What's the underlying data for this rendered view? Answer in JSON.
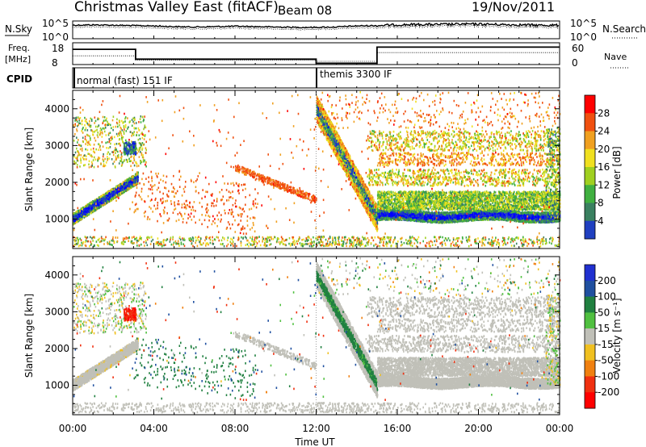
{
  "header": {
    "station": "Christmas Valley East (fitACF)",
    "beam": "Beam 08",
    "date": "19/Nov/2011"
  },
  "colors": {
    "power": [
      "#0000ff",
      "#2040c0",
      "#3a8060",
      "#40b040",
      "#a0d020",
      "#f0e020",
      "#f0a020",
      "#f05010",
      "#ff0000"
    ],
    "velocity": [
      "#2030d0",
      "#2050a0",
      "#208040",
      "#50c040",
      "#c0c0b8",
      "#f0c020",
      "#f08010",
      "#f03010",
      "#ff0000"
    ],
    "ground": "#c0c0b8"
  },
  "panels": {
    "nsky": {
      "label": "N.Sky",
      "tick_top": "10^5",
      "tick_bottom": "10^0",
      "right_label": "N.Search",
      "right_tick_top": "10^5",
      "right_tick_bottom": "10^0"
    },
    "freq": {
      "label_line1": "Freq.",
      "label_line2": "[MHz]",
      "tick_top": "18",
      "tick_bottom": "8",
      "right_label": "Nave",
      "right_tick_top": "60",
      "right_tick_bottom": "0"
    },
    "cpid": {
      "label": "CPID",
      "mode1": "normal (fast) 151 IF",
      "mode2": "themis 3300 IF"
    },
    "power": {
      "ylabel": "Slant Range [km]",
      "cbar_label": "Power [dB]",
      "cbar_ticks": [
        "28",
        "24",
        "20",
        "16",
        "12",
        "8",
        "4"
      ]
    },
    "velocity": {
      "ylabel": "Slant Range [km]",
      "cbar_label": "Velocity [m s⁻¹]",
      "cbar_ticks": [
        "200",
        "100",
        "50",
        "15",
        "-15",
        "-50",
        "-100",
        "-200"
      ]
    }
  },
  "chart_data": [
    {
      "type": "line",
      "name": "nsky-nsearch",
      "xlim": [
        0,
        24
      ],
      "series": [
        {
          "x": [
            0,
            1,
            2,
            3,
            4,
            5,
            6,
            7,
            8,
            9,
            10,
            11,
            12,
            13,
            14,
            15,
            16,
            17,
            18,
            19,
            20,
            21,
            22,
            23,
            24
          ],
          "values": [
            3.8,
            3.9,
            3.8,
            3.7,
            3.6,
            3.4,
            3.3,
            3.4,
            3.5,
            3.4,
            3.3,
            3.2,
            3.2,
            3.3,
            3.6,
            3.7,
            3.9,
            4.0,
            4.0,
            4.1,
            4.1,
            4.0,
            3.9,
            3.8,
            3.8
          ]
        }
      ]
    },
    {
      "type": "line",
      "name": "freq-nave",
      "xlim": [
        0,
        24
      ],
      "series": [
        {
          "x": [
            0,
            3.1,
            3.1,
            12,
            12,
            15,
            15,
            24
          ],
          "values": [
            15,
            15,
            10.5,
            10.5,
            8.6,
            8.6,
            16,
            16
          ]
        },
        {
          "x": [
            0,
            3.1,
            3.1,
            12,
            12,
            15,
            15,
            24
          ],
          "values": [
            12,
            12,
            10,
            10,
            9.5,
            9.5,
            13.5,
            13.5
          ]
        }
      ]
    },
    {
      "type": "heatmap",
      "name": "power",
      "xlabel": "",
      "ylabel": "Slant Range [km]",
      "xlim": [
        0,
        24
      ],
      "ylim": [
        200,
        4500
      ],
      "yticks": [
        1000,
        2000,
        3000,
        4000
      ],
      "cbar_range": [
        0,
        30
      ],
      "cbar_ticks": [
        4,
        8,
        12,
        16,
        20,
        24,
        28
      ]
    },
    {
      "type": "heatmap",
      "name": "velocity",
      "xlabel": "Time UT",
      "ylabel": "Slant Range [km]",
      "xlim": [
        0,
        24
      ],
      "ylim": [
        200,
        4500
      ],
      "xticks": [
        "00:00",
        "04:00",
        "08:00",
        "12:00",
        "16:00",
        "20:00",
        "00:00"
      ],
      "yticks": [
        1000,
        2000,
        3000,
        4000
      ],
      "cbar_range": [
        -250,
        250
      ],
      "cbar_ticks": [
        200,
        100,
        50,
        15,
        -15,
        -50,
        -100,
        -200
      ]
    }
  ]
}
